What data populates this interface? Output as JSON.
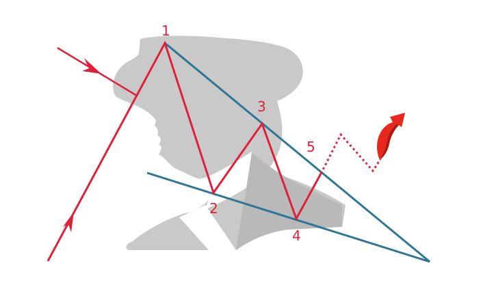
{
  "diagram": {
    "colors": {
      "background": "#ffffff",
      "silhouette": "#c9c9c9",
      "suit_shadow": "#b7b7b7",
      "wave": "#e0203a",
      "trendline": "#2e7596",
      "arrow": "#e8271d"
    },
    "wave_labels": {
      "p1": "1",
      "p2": "2",
      "p3": "3",
      "p4": "4",
      "p5": "5"
    },
    "icons": {
      "breakout_arrow": "curved-up-arrow-icon",
      "incoming_arrow": "arrowhead-icon",
      "background_figure": "man-with-hat-silhouette"
    }
  }
}
